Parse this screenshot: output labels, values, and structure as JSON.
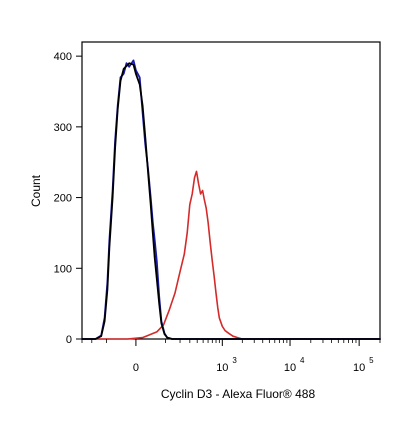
{
  "chart_data": {
    "type": "line",
    "title": "",
    "xlabel": "Cyclin D3 - Alexa Fluor® 488",
    "ylabel": "Count",
    "x_scale": "biexponential",
    "xlim": [
      -300,
      200000
    ],
    "ylim": [
      0,
      420
    ],
    "grid": false,
    "y_ticks": [
      0,
      100,
      200,
      300,
      400
    ],
    "x_ticks": [
      {
        "value": 0,
        "label": "0"
      },
      {
        "value": 1000,
        "label": "10",
        "exponent": "3"
      },
      {
        "value": 10000,
        "label": "10",
        "exponent": "4"
      },
      {
        "value": 100000,
        "label": "10",
        "exponent": "5"
      }
    ],
    "series": [
      {
        "color": "#d42a2a",
        "x": [
          -300,
          -20,
          15,
          35,
          60,
          90,
          120,
          160,
          200,
          240,
          270,
          300,
          330,
          360,
          390,
          420,
          455,
          490,
          520,
          560,
          600,
          650,
          700,
          750,
          800,
          850,
          900,
          1000,
          1100,
          1250,
          1450,
          1700,
          2000,
          3000,
          10000,
          100000,
          200000
        ],
        "y": [
          0,
          0,
          2,
          6,
          10,
          20,
          40,
          65,
          95,
          120,
          150,
          190,
          205,
          228,
          237,
          220,
          205,
          210,
          198,
          185,
          165,
          135,
          110,
          88,
          65,
          45,
          30,
          18,
          12,
          8,
          4,
          2,
          0,
          0,
          0,
          0,
          0
        ]
      },
      {
        "color": "#1a1aa8",
        "x": [
          -300,
          -170,
          -130,
          -110,
          -95,
          -85,
          -70,
          -60,
          -50,
          -40,
          -30,
          -22,
          -15,
          -5,
          0,
          8,
          15,
          22,
          30,
          38,
          45,
          52,
          60,
          70,
          80,
          95,
          110,
          140,
          200000
        ],
        "y": [
          0,
          0,
          5,
          30,
          80,
          140,
          210,
          280,
          330,
          370,
          375,
          390,
          385,
          394,
          380,
          370,
          320,
          275,
          240,
          200,
          165,
          140,
          110,
          60,
          25,
          8,
          2,
          0,
          0
        ]
      },
      {
        "color": "#000000",
        "x": [
          -300,
          -170,
          -130,
          -110,
          -95,
          -85,
          -70,
          -60,
          -50,
          -40,
          -30,
          -22,
          -15,
          -5,
          0,
          8,
          15,
          22,
          30,
          38,
          45,
          52,
          60,
          70,
          80,
          95,
          110,
          140,
          200000
        ],
        "y": [
          0,
          0,
          4,
          25,
          70,
          130,
          200,
          270,
          325,
          365,
          382,
          386,
          390,
          388,
          375,
          360,
          330,
          285,
          235,
          190,
          150,
          115,
          85,
          50,
          22,
          7,
          2,
          0,
          0
        ]
      }
    ]
  }
}
